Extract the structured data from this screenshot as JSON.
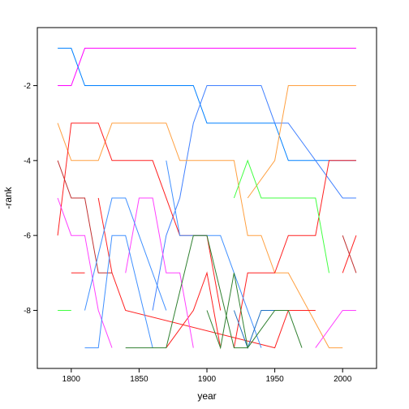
{
  "chart_data": {
    "type": "line",
    "xlabel": "year",
    "ylabel": "-rank",
    "xlim": [
      1775,
      2025
    ],
    "ylim": [
      -9.55,
      -0.45
    ],
    "xticks": [
      1800,
      1850,
      1900,
      1950,
      2000
    ],
    "yticks": [
      -2,
      -4,
      -6,
      -8
    ],
    "xtick_labels": [
      "1800",
      "1850",
      "1900",
      "1950",
      "2000"
    ],
    "ytick_labels": [
      "-2",
      "-4",
      "-6",
      "-8"
    ],
    "grid": false,
    "series": [
      {
        "color": "#ff00ff",
        "points": [
          [
            1790,
            -2
          ],
          [
            1800,
            -2
          ],
          [
            1810,
            -1
          ],
          [
            2010,
            -1
          ]
        ]
      },
      {
        "color": "#0080ff",
        "points": [
          [
            1790,
            -1
          ],
          [
            1800,
            -1
          ],
          [
            1810,
            -2
          ],
          [
            1890,
            -2
          ],
          [
            1900,
            -3
          ],
          [
            1950,
            -3
          ],
          [
            1960,
            -4
          ],
          [
            2010,
            -4
          ]
        ]
      },
      {
        "color": "#4080ff",
        "points": [
          [
            1860,
            -8
          ],
          [
            1870,
            -6
          ],
          [
            1880,
            -5
          ],
          [
            1890,
            -3
          ],
          [
            1900,
            -2
          ],
          [
            1940,
            -2
          ],
          [
            1950,
            -3
          ],
          [
            1960,
            -3
          ],
          [
            1980,
            -4
          ],
          [
            2000,
            -5
          ],
          [
            2010,
            -5
          ]
        ]
      },
      {
        "color": "#ffa040",
        "points": [
          [
            1790,
            -3
          ],
          [
            1800,
            -4
          ],
          [
            1820,
            -4
          ],
          [
            1830,
            -3
          ],
          [
            1870,
            -3
          ],
          [
            1880,
            -4
          ],
          [
            1900,
            -4
          ],
          [
            1920,
            -4
          ],
          [
            1930,
            -6
          ],
          [
            1940,
            -6
          ],
          [
            1950,
            -7
          ],
          [
            1960,
            -7
          ],
          [
            1990,
            -9
          ],
          [
            2000,
            -9
          ]
        ]
      },
      {
        "color": "#ffa040",
        "points": [
          [
            1930,
            -5
          ],
          [
            1950,
            -4
          ],
          [
            1960,
            -2
          ],
          [
            2010,
            -2
          ]
        ]
      },
      {
        "color": "#ff2020",
        "points": [
          [
            1790,
            -6
          ],
          [
            1800,
            -3
          ],
          [
            1820,
            -3
          ],
          [
            1830,
            -4
          ],
          [
            1860,
            -4
          ],
          [
            1880,
            -6
          ],
          [
            1900,
            -6
          ],
          [
            1910,
            -8
          ]
        ]
      },
      {
        "color": "#ff2020",
        "points": [
          [
            1800,
            -7
          ],
          [
            1810,
            -7
          ]
        ]
      },
      {
        "color": "#ff2020",
        "points": [
          [
            1820,
            -5
          ],
          [
            1830,
            -7
          ],
          [
            1840,
            -8
          ],
          [
            1950,
            -9
          ],
          [
            1960,
            -8
          ],
          [
            1980,
            -8
          ]
        ]
      },
      {
        "color": "#ff2020",
        "points": [
          [
            1920,
            -9
          ],
          [
            1930,
            -7
          ],
          [
            1950,
            -7
          ],
          [
            1960,
            -6
          ],
          [
            1980,
            -6
          ],
          [
            1990,
            -4
          ],
          [
            2010,
            -4
          ]
        ]
      },
      {
        "color": "#ff2020",
        "points": [
          [
            1870,
            -9
          ],
          [
            1890,
            -8
          ],
          [
            1900,
            -7
          ],
          [
            1910,
            -9
          ]
        ]
      },
      {
        "color": "#ff2020",
        "points": [
          [
            2000,
            -7
          ],
          [
            2010,
            -6
          ]
        ]
      },
      {
        "color": "#c03030",
        "points": [
          [
            1790,
            -4
          ],
          [
            1800,
            -5
          ],
          [
            1810,
            -5
          ],
          [
            1820,
            -7
          ],
          [
            1830,
            -7
          ]
        ]
      },
      {
        "color": "#c03030",
        "points": [
          [
            2000,
            -6
          ],
          [
            2010,
            -7
          ]
        ]
      },
      {
        "color": "#ff40ff",
        "points": [
          [
            1790,
            -5
          ],
          [
            1800,
            -6
          ],
          [
            1810,
            -6
          ],
          [
            1820,
            -8
          ],
          [
            1830,
            -9
          ]
        ]
      },
      {
        "color": "#ff40ff",
        "points": [
          [
            1840,
            -7
          ],
          [
            1850,
            -5
          ],
          [
            1860,
            -5
          ],
          [
            1870,
            -7
          ],
          [
            1880,
            -7
          ],
          [
            1890,
            -9
          ]
        ]
      },
      {
        "color": "#ff40ff",
        "points": [
          [
            1980,
            -9
          ],
          [
            2000,
            -8
          ],
          [
            2010,
            -8
          ]
        ]
      },
      {
        "color": "#4090ff",
        "points": [
          [
            1810,
            -8
          ],
          [
            1830,
            -5
          ],
          [
            1840,
            -5
          ],
          [
            1870,
            -8
          ]
        ]
      },
      {
        "color": "#4090ff",
        "points": [
          [
            1810,
            -9
          ],
          [
            1820,
            -9
          ],
          [
            1830,
            -6
          ],
          [
            1840,
            -6
          ],
          [
            1860,
            -9
          ]
        ]
      },
      {
        "color": "#4090ff",
        "points": [
          [
            1870,
            -4
          ],
          [
            1880,
            -6
          ],
          [
            1900,
            -6
          ],
          [
            1910,
            -6
          ],
          [
            1920,
            -7
          ],
          [
            1940,
            -9
          ]
        ]
      },
      {
        "color": "#2070c0",
        "points": [
          [
            1920,
            -8
          ],
          [
            1930,
            -9
          ],
          [
            1940,
            -8
          ],
          [
            1950,
            -8
          ]
        ]
      },
      {
        "color": "#308030",
        "points": [
          [
            1840,
            -9
          ],
          [
            1870,
            -9
          ],
          [
            1890,
            -6
          ],
          [
            1900,
            -6
          ],
          [
            1920,
            -9
          ],
          [
            1930,
            -9
          ],
          [
            1950,
            -8
          ],
          [
            1960,
            -8
          ],
          [
            1970,
            -9
          ]
        ]
      },
      {
        "color": "#308030",
        "points": [
          [
            1900,
            -8
          ],
          [
            1910,
            -9
          ],
          [
            1920,
            -7
          ],
          [
            1930,
            -9
          ]
        ]
      },
      {
        "color": "#40ff40",
        "points": [
          [
            1790,
            -8
          ],
          [
            1800,
            -8
          ]
        ]
      },
      {
        "color": "#40ff40",
        "points": [
          [
            1920,
            -5
          ],
          [
            1930,
            -4
          ],
          [
            1940,
            -5
          ],
          [
            1980,
            -5
          ],
          [
            1990,
            -7
          ]
        ]
      }
    ]
  }
}
